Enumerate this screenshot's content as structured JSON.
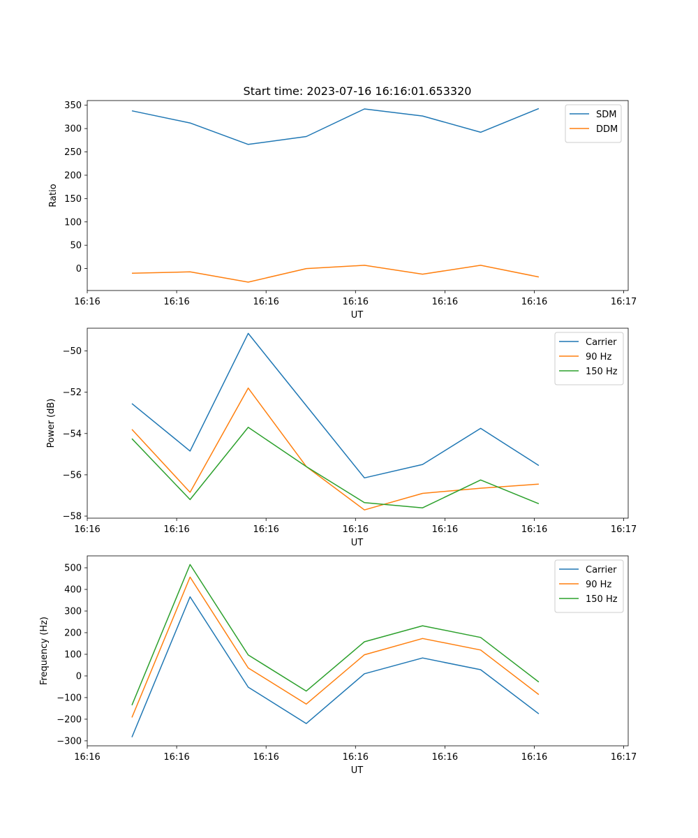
{
  "figure": {
    "suptitle": "Start time: 2023-07-16 16:16:01.653320"
  },
  "chart_data": [
    {
      "type": "line",
      "title": "Start time: 2023-07-16 16:16:01.653320",
      "xlabel": "UT",
      "ylabel": "Ratio",
      "x": [
        0.5,
        1.15,
        1.8,
        2.45,
        3.1,
        3.75,
        4.4,
        5.05
      ],
      "xlim": [
        0,
        6.05
      ],
      "xticks": [
        0,
        1,
        2,
        3,
        4,
        5,
        6
      ],
      "xtick_labels": [
        "16:16",
        "16:16",
        "16:16",
        "16:16",
        "16:16",
        "16:16",
        "16:17"
      ],
      "ylim": [
        -47,
        360
      ],
      "yticks": [
        0,
        50,
        100,
        150,
        200,
        250,
        300,
        350
      ],
      "legend_position": "top-right",
      "series": [
        {
          "name": "SDM",
          "color": "#1f77b4",
          "values": [
            338,
            312,
            266,
            283,
            342,
            327,
            292,
            343
          ]
        },
        {
          "name": "DDM",
          "color": "#ff7f0e",
          "values": [
            -10,
            -7,
            -29,
            0,
            7,
            -12,
            7,
            -18
          ]
        }
      ]
    },
    {
      "type": "line",
      "title": "",
      "xlabel": "UT",
      "ylabel": "Power (dB)",
      "x": [
        0.5,
        1.15,
        1.8,
        2.45,
        3.1,
        3.75,
        4.4,
        5.05
      ],
      "xlim": [
        0,
        6.05
      ],
      "xticks": [
        0,
        1,
        2,
        3,
        4,
        5,
        6
      ],
      "xtick_labels": [
        "16:16",
        "16:16",
        "16:16",
        "16:16",
        "16:16",
        "16:16",
        "16:17"
      ],
      "ylim": [
        -58.1,
        -48.9
      ],
      "yticks": [
        -58,
        -56,
        -54,
        -52,
        -50
      ],
      "ytick_labels": [
        "−58",
        "−56",
        "−54",
        "−52",
        "−50"
      ],
      "legend_position": "top-right",
      "series": [
        {
          "name": "Carrier",
          "color": "#1f77b4",
          "values": [
            -52.55,
            -54.85,
            -49.15,
            -52.65,
            -56.15,
            -55.5,
            -53.75,
            -55.55
          ]
        },
        {
          "name": "90 Hz",
          "color": "#ff7f0e",
          "values": [
            -53.8,
            -56.85,
            -51.8,
            -55.6,
            -57.7,
            -56.9,
            -56.65,
            -56.45
          ]
        },
        {
          "name": "150 Hz",
          "color": "#2ca02c",
          "values": [
            -54.25,
            -57.2,
            -53.7,
            -55.6,
            -57.35,
            -57.6,
            -56.25,
            -57.4
          ]
        }
      ]
    },
    {
      "type": "line",
      "title": "",
      "xlabel": "UT",
      "ylabel": "Frequency (Hz)",
      "x": [
        0.5,
        1.15,
        1.8,
        2.45,
        3.1,
        3.75,
        4.4,
        5.05
      ],
      "xlim": [
        0,
        6.05
      ],
      "xticks": [
        0,
        1,
        2,
        3,
        4,
        5,
        6
      ],
      "xtick_labels": [
        "16:16",
        "16:16",
        "16:16",
        "16:16",
        "16:16",
        "16:16",
        "16:17"
      ],
      "ylim": [
        -323,
        555
      ],
      "yticks": [
        -300,
        -200,
        -100,
        0,
        100,
        200,
        300,
        400,
        500
      ],
      "ytick_labels": [
        "−300",
        "−200",
        "−100",
        "0",
        "100",
        "200",
        "300",
        "400",
        "500"
      ],
      "legend_position": "top-right",
      "series": [
        {
          "name": "Carrier",
          "color": "#1f77b4",
          "values": [
            -283,
            366,
            -52,
            -220,
            10,
            83,
            29,
            -175
          ]
        },
        {
          "name": "90 Hz",
          "color": "#ff7f0e",
          "values": [
            -192,
            457,
            37,
            -130,
            98,
            173,
            120,
            -86
          ]
        },
        {
          "name": "150 Hz",
          "color": "#2ca02c",
          "values": [
            -135,
            515,
            97,
            -70,
            158,
            232,
            178,
            -28
          ]
        }
      ]
    }
  ]
}
